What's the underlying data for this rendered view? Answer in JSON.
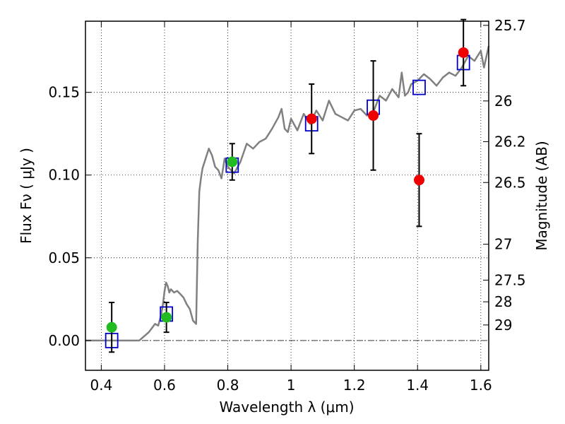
{
  "chart_data": {
    "type": "scatter",
    "xlabel": "Wavelength  λ (μm)",
    "ylabel": "Flux  Fν  ( μJy )",
    "ylabel_right": "Magnitude (AB)",
    "xlim": [
      0.35,
      1.625
    ],
    "ylim": [
      -0.018,
      0.193
    ],
    "grid": true,
    "x_ticks": [
      {
        "value": 0.4,
        "label": "0.4"
      },
      {
        "value": 0.6,
        "label": "0.6"
      },
      {
        "value": 0.8,
        "label": "0.8"
      },
      {
        "value": 1.0,
        "label": "1"
      },
      {
        "value": 1.2,
        "label": "1.2"
      },
      {
        "value": 1.4,
        "label": "1.4"
      },
      {
        "value": 1.6,
        "label": "1.6"
      }
    ],
    "y_ticks": [
      {
        "value": 0.0,
        "label": "0.00"
      },
      {
        "value": 0.05,
        "label": "0.05"
      },
      {
        "value": 0.1,
        "label": "0.10"
      },
      {
        "value": 0.15,
        "label": "0.15"
      }
    ],
    "right_ticks": [
      {
        "flux": 0.1905,
        "label": "25.7"
      },
      {
        "flux": 0.1448,
        "label": "26"
      },
      {
        "flux": 0.1202,
        "label": "26.2"
      },
      {
        "flux": 0.0955,
        "label": "26.5"
      },
      {
        "flux": 0.0582,
        "label": "27"
      },
      {
        "flux": 0.0365,
        "label": "27.5"
      },
      {
        "flux": 0.0234,
        "label": "28"
      },
      {
        "flux": 0.0094,
        "label": "29"
      }
    ],
    "colors": {
      "model": "#808080",
      "model_photometry": "#0000cc",
      "green_points": "#22bb22",
      "red_points": "#ee0000",
      "errorbar": "#000000"
    },
    "series": [
      {
        "name": "model_spectrum",
        "kind": "line",
        "x": [
          0.35,
          0.52,
          0.55,
          0.57,
          0.58,
          0.59,
          0.595,
          0.6,
          0.605,
          0.61,
          0.615,
          0.62,
          0.63,
          0.64,
          0.65,
          0.66,
          0.67,
          0.68,
          0.69,
          0.7,
          0.705,
          0.71,
          0.715,
          0.72,
          0.73,
          0.74,
          0.75,
          0.76,
          0.77,
          0.78,
          0.79,
          0.8,
          0.82,
          0.84,
          0.86,
          0.88,
          0.9,
          0.92,
          0.94,
          0.96,
          0.97,
          0.98,
          0.99,
          1.0,
          1.02,
          1.04,
          1.06,
          1.08,
          1.1,
          1.12,
          1.14,
          1.16,
          1.18,
          1.2,
          1.22,
          1.24,
          1.26,
          1.28,
          1.3,
          1.32,
          1.34,
          1.35,
          1.36,
          1.37,
          1.38,
          1.4,
          1.42,
          1.44,
          1.46,
          1.48,
          1.5,
          1.52,
          1.54,
          1.56,
          1.58,
          1.6,
          1.61,
          1.625
        ],
        "y": [
          0.0,
          0.0,
          0.005,
          0.01,
          0.009,
          0.016,
          0.022,
          0.03,
          0.035,
          0.033,
          0.029,
          0.031,
          0.029,
          0.03,
          0.028,
          0.026,
          0.022,
          0.019,
          0.012,
          0.01,
          0.06,
          0.09,
          0.098,
          0.104,
          0.11,
          0.116,
          0.112,
          0.105,
          0.103,
          0.098,
          0.11,
          0.105,
          0.101,
          0.108,
          0.119,
          0.116,
          0.12,
          0.122,
          0.128,
          0.135,
          0.14,
          0.128,
          0.126,
          0.134,
          0.127,
          0.137,
          0.131,
          0.139,
          0.133,
          0.145,
          0.137,
          0.135,
          0.133,
          0.139,
          0.14,
          0.136,
          0.138,
          0.148,
          0.145,
          0.152,
          0.147,
          0.162,
          0.148,
          0.15,
          0.155,
          0.157,
          0.161,
          0.158,
          0.154,
          0.159,
          0.162,
          0.16,
          0.165,
          0.172,
          0.169,
          0.175,
          0.165,
          0.178
        ]
      },
      {
        "name": "model_photometry",
        "kind": "open_squares",
        "x": [
          0.433,
          0.606,
          0.814,
          1.065,
          1.26,
          1.405,
          1.545
        ],
        "y": [
          0.0,
          0.016,
          0.106,
          0.131,
          0.141,
          0.153,
          0.168
        ]
      },
      {
        "name": "observed_optical",
        "kind": "filled_circles",
        "x": [
          0.433,
          0.606,
          0.814
        ],
        "y": [
          0.008,
          0.014,
          0.108
        ],
        "yerr": [
          0.015,
          0.009,
          0.011
        ]
      },
      {
        "name": "observed_nir",
        "kind": "filled_circles",
        "x": [
          1.065,
          1.26,
          1.405,
          1.545
        ],
        "y": [
          0.134,
          0.136,
          0.097,
          0.174
        ],
        "yerr": [
          0.021,
          0.033,
          0.028,
          0.02
        ]
      }
    ]
  }
}
